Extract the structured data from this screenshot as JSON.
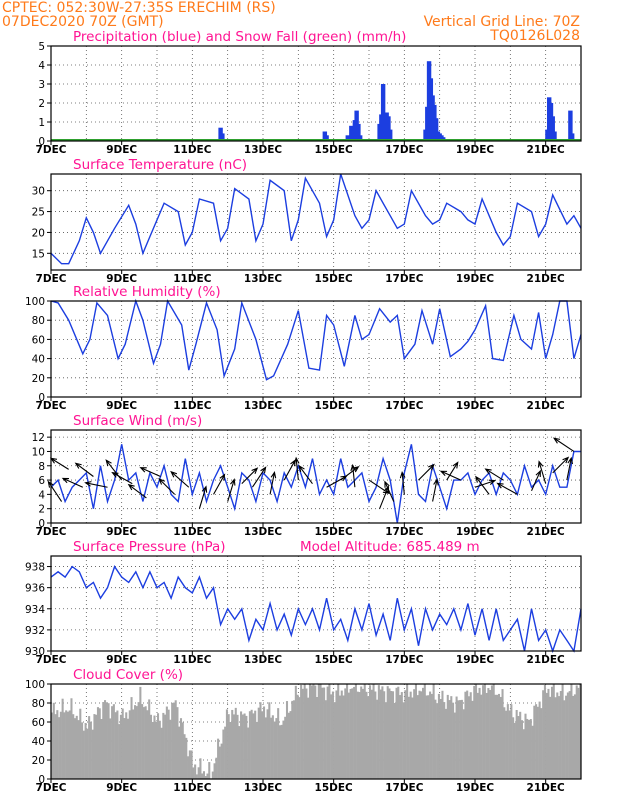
{
  "header": {
    "line1": "CPTEC:   052:30W-27:35S   ERECHIM (RS)",
    "line2": "07DEC2020 70Z (GMT)",
    "right1": "Vertical Grid Line: 70Z",
    "right2": "TQ0126L028"
  },
  "colors": {
    "header": "#ff7a1a",
    "title": "#ff1493",
    "line": "#1c3ee0",
    "precip": "#1c3ee0",
    "snow": "#2ea02e",
    "cloud": "#a8a8a8"
  },
  "chart_data": [
    {
      "id": "precip",
      "type": "bar",
      "title": "Precipitation (blue) and Snow Fall (green) (mm/h)",
      "ylim": [
        0,
        5
      ],
      "yticks": [
        0,
        1,
        2,
        3,
        4,
        5
      ],
      "xticks": [
        "7DEC",
        "9DEC",
        "11DEC",
        "13DEC",
        "15DEC",
        "17DEC",
        "19DEC",
        "21DEC"
      ],
      "series": [
        {
          "name": "Precipitation",
          "color": "#1c3ee0",
          "bars": [
            [
              4.8,
              0.7
            ],
            [
              4.85,
              0.4
            ],
            [
              7.75,
              0.5
            ],
            [
              7.8,
              0.3
            ],
            [
              8.4,
              0.3
            ],
            [
              8.5,
              0.8
            ],
            [
              8.55,
              0.5
            ],
            [
              8.6,
              1.1
            ],
            [
              8.65,
              1.6
            ],
            [
              8.7,
              0.9
            ],
            [
              8.75,
              0.3
            ],
            [
              9.3,
              0.9
            ],
            [
              9.35,
              1.4
            ],
            [
              9.4,
              3.0
            ],
            [
              9.45,
              1.2
            ],
            [
              9.5,
              1.5
            ],
            [
              9.55,
              1.3
            ],
            [
              9.6,
              0.6
            ],
            [
              10.6,
              0.6
            ],
            [
              10.65,
              1.8
            ],
            [
              10.7,
              4.2
            ],
            [
              10.75,
              3.3
            ],
            [
              10.8,
              2.4
            ],
            [
              10.85,
              1.9
            ],
            [
              10.9,
              1.2
            ],
            [
              10.95,
              0.5
            ],
            [
              11.0,
              0.4
            ],
            [
              11.05,
              0.3
            ],
            [
              11.1,
              0.2
            ],
            [
              14.05,
              0.6
            ],
            [
              14.1,
              2.3
            ],
            [
              14.15,
              2.0
            ],
            [
              14.2,
              1.3
            ],
            [
              14.25,
              0.5
            ],
            [
              14.7,
              1.6
            ],
            [
              14.75,
              0.4
            ]
          ]
        },
        {
          "name": "Snow Fall",
          "color": "#2ea02e",
          "value": 0
        }
      ]
    },
    {
      "id": "temp",
      "type": "line",
      "title": "Surface Temperature (nC)",
      "ylim": [
        11,
        34
      ],
      "yticks": [
        15,
        20,
        25,
        30
      ],
      "xticks": [
        "7DEC",
        "9DEC",
        "11DEC",
        "13DEC",
        "15DEC",
        "17DEC",
        "19DEC",
        "21DEC"
      ],
      "x": [
        0,
        0.3,
        0.5,
        0.8,
        1.0,
        1.2,
        1.4,
        1.8,
        2.2,
        2.4,
        2.6,
        2.8,
        3.2,
        3.6,
        3.8,
        4.0,
        4.2,
        4.6,
        4.8,
        5.0,
        5.2,
        5.6,
        5.8,
        6.0,
        6.2,
        6.6,
        6.8,
        7.0,
        7.2,
        7.6,
        7.8,
        8.0,
        8.2,
        8.6,
        8.8,
        9.0,
        9.2,
        9.6,
        9.8,
        10.0,
        10.2,
        10.6,
        10.8,
        11.0,
        11.2,
        11.6,
        11.8,
        12.0,
        12.2,
        12.6,
        12.8,
        13.0,
        13.2,
        13.6,
        13.8,
        14.0,
        14.2,
        14.6,
        14.8,
        15.0
      ],
      "values": [
        15,
        12.5,
        12.5,
        18,
        23.5,
        20,
        15,
        21,
        26.5,
        22,
        15,
        19,
        27,
        25,
        17,
        20,
        28,
        27,
        18,
        21,
        30.5,
        28,
        18,
        22,
        32.5,
        30,
        18,
        23,
        33,
        27,
        19,
        23,
        34,
        24,
        21,
        23,
        30,
        24,
        21,
        22,
        30,
        24,
        22,
        23,
        27,
        25,
        23,
        22,
        28,
        20,
        17,
        19,
        27,
        25,
        19,
        22,
        29,
        22,
        24,
        21
      ]
    },
    {
      "id": "rh",
      "type": "line",
      "title": "Relative Humidity (%)",
      "ylim": [
        0,
        100
      ],
      "yticks": [
        0,
        20,
        40,
        60,
        80,
        100
      ],
      "xticks": [
        "7DEC",
        "9DEC",
        "11DEC",
        "13DEC",
        "15DEC",
        "17DEC",
        "19DEC",
        "21DEC"
      ],
      "x": [
        0,
        0.2,
        0.5,
        0.9,
        1.1,
        1.3,
        1.6,
        1.9,
        2.1,
        2.4,
        2.6,
        2.9,
        3.1,
        3.3,
        3.7,
        3.9,
        4.1,
        4.4,
        4.7,
        4.9,
        5.2,
        5.4,
        5.8,
        6.1,
        6.3,
        6.7,
        7.0,
        7.3,
        7.6,
        7.8,
        8.0,
        8.3,
        8.6,
        8.8,
        9.0,
        9.3,
        9.6,
        9.8,
        10.0,
        10.3,
        10.5,
        10.8,
        11.0,
        11.3,
        11.6,
        11.8,
        12.0,
        12.3,
        12.5,
        12.8,
        13.1,
        13.3,
        13.6,
        13.8,
        14.0,
        14.2,
        14.4,
        14.6,
        14.8,
        15.0
      ],
      "values": [
        100,
        98,
        80,
        45,
        60,
        98,
        85,
        40,
        55,
        100,
        80,
        35,
        55,
        100,
        75,
        28,
        55,
        98,
        70,
        22,
        50,
        98,
        60,
        18,
        22,
        55,
        90,
        30,
        28,
        85,
        75,
        32,
        85,
        60,
        65,
        92,
        78,
        85,
        40,
        55,
        90,
        55,
        92,
        42,
        50,
        58,
        70,
        95,
        40,
        38,
        85,
        60,
        50,
        88,
        40,
        65,
        100,
        100,
        40,
        65
      ]
    },
    {
      "id": "wind",
      "type": "line",
      "title": "Surface Wind (m/s)",
      "ylim": [
        0,
        13
      ],
      "yticks": [
        0,
        2,
        4,
        6,
        8,
        10,
        12
      ],
      "xticks": [
        "7DEC",
        "9DEC",
        "11DEC",
        "13DEC",
        "15DEC",
        "17DEC",
        "19DEC",
        "21DEC"
      ],
      "x": [
        0,
        0.2,
        0.4,
        0.6,
        0.8,
        1.0,
        1.2,
        1.4,
        1.6,
        1.8,
        2.0,
        2.2,
        2.4,
        2.6,
        2.8,
        3.0,
        3.2,
        3.4,
        3.6,
        3.8,
        4.0,
        4.2,
        4.4,
        4.6,
        4.8,
        5.0,
        5.2,
        5.4,
        5.6,
        5.8,
        6.0,
        6.2,
        6.4,
        6.6,
        6.8,
        7.0,
        7.2,
        7.4,
        7.6,
        7.8,
        8.0,
        8.2,
        8.4,
        8.6,
        8.8,
        9.0,
        9.2,
        9.4,
        9.6,
        9.8,
        10.0,
        10.2,
        10.4,
        10.6,
        10.8,
        11.0,
        11.2,
        11.4,
        11.6,
        11.8,
        12.0,
        12.2,
        12.4,
        12.6,
        12.8,
        13.0,
        13.2,
        13.4,
        13.6,
        13.8,
        14.0,
        14.2,
        14.4,
        14.6,
        14.8,
        15.0
      ],
      "values": [
        5,
        6,
        3,
        5,
        6,
        7,
        2,
        8,
        3,
        6,
        11,
        6,
        7,
        3,
        7,
        5,
        8,
        4,
        3,
        9,
        4,
        7,
        3,
        6,
        8,
        5,
        2,
        7,
        6,
        3,
        7,
        6,
        3,
        7,
        5,
        8,
        5,
        9,
        4,
        6,
        4,
        9,
        5,
        6,
        7,
        3,
        5,
        9,
        6,
        0,
        7,
        11,
        4,
        3,
        8,
        5,
        2,
        6,
        6,
        7,
        4,
        6,
        7,
        4,
        7,
        6,
        4,
        8,
        5,
        6,
        4,
        8,
        5,
        5,
        10,
        10
      ],
      "arrows": [
        [
          0.3,
          3,
          -0.6,
          0.9
        ],
        [
          0.5,
          7.5,
          -0.8,
          0.5
        ],
        [
          0.9,
          5,
          -0.9,
          0.4
        ],
        [
          1.2,
          6.5,
          -0.8,
          0.6
        ],
        [
          1.6,
          5,
          -1,
          0.2
        ],
        [
          2.0,
          6,
          -0.7,
          0.9
        ],
        [
          2.3,
          5.5,
          -0.9,
          0.5
        ],
        [
          2.7,
          3.5,
          -0.8,
          0.6
        ],
        [
          3.1,
          6.5,
          -0.9,
          0.4
        ],
        [
          3.5,
          4,
          -0.7,
          0.7
        ],
        [
          3.9,
          5,
          -0.8,
          0.7
        ],
        [
          4.2,
          2,
          0.3,
          1
        ],
        [
          4.6,
          4,
          0.5,
          0.9
        ],
        [
          5.0,
          3,
          0.3,
          1
        ],
        [
          5.4,
          5.5,
          0.7,
          0.7
        ],
        [
          5.7,
          5,
          0.6,
          0.9
        ],
        [
          6.2,
          4,
          0.2,
          1
        ],
        [
          6.6,
          6,
          0.5,
          0.9
        ],
        [
          7.0,
          6,
          -0.1,
          1
        ],
        [
          7.4,
          5.5,
          -0.6,
          0.8
        ],
        [
          7.8,
          5,
          0.9,
          0.5
        ],
        [
          8.2,
          6,
          0.8,
          0.6
        ],
        [
          8.6,
          5,
          -0.1,
          1
        ],
        [
          9.0,
          6,
          0.9,
          -0.6
        ],
        [
          9.3,
          2,
          0.4,
          1
        ],
        [
          9.7,
          3,
          -0.4,
          0.9
        ],
        [
          10.0,
          4,
          -0.1,
          1
        ],
        [
          10.4,
          6,
          0.7,
          0.7
        ],
        [
          10.8,
          3,
          0.2,
          1
        ],
        [
          11.2,
          6,
          0.5,
          0.8
        ],
        [
          11.6,
          6,
          -0.9,
          0.4
        ],
        [
          12.0,
          5,
          0.9,
          0.3
        ],
        [
          12.4,
          4,
          -0.6,
          0.8
        ],
        [
          12.8,
          6,
          -0.8,
          0.5
        ],
        [
          13.2,
          4,
          -0.9,
          0.5
        ],
        [
          13.6,
          4.5,
          0.4,
          0.9
        ],
        [
          14.0,
          5.5,
          -0.3,
          1
        ],
        [
          14.2,
          7,
          0.7,
          0.7
        ],
        [
          14.6,
          6,
          0.2,
          1
        ],
        [
          14.8,
          10,
          -0.9,
          0.6
        ]
      ]
    },
    {
      "id": "pres",
      "type": "line",
      "title": "Surface Pressure (hPa)",
      "subtitle": "Model Altitude: 685.489  m",
      "ylim": [
        930,
        939
      ],
      "yticks": [
        930,
        932,
        934,
        936,
        938
      ],
      "xticks": [
        "7DEC",
        "9DEC",
        "11DEC",
        "13DEC",
        "15DEC",
        "17DEC",
        "19DEC",
        "21DEC"
      ],
      "x": [
        0,
        0.2,
        0.4,
        0.6,
        0.8,
        1.0,
        1.2,
        1.4,
        1.6,
        1.8,
        2.0,
        2.2,
        2.4,
        2.6,
        2.8,
        3.0,
        3.2,
        3.4,
        3.6,
        3.8,
        4.0,
        4.2,
        4.4,
        4.6,
        4.8,
        5.0,
        5.2,
        5.4,
        5.6,
        5.8,
        6.0,
        6.2,
        6.4,
        6.6,
        6.8,
        7.0,
        7.2,
        7.4,
        7.6,
        7.8,
        8.0,
        8.2,
        8.4,
        8.6,
        8.8,
        9.0,
        9.2,
        9.4,
        9.6,
        9.8,
        10.0,
        10.2,
        10.4,
        10.6,
        10.8,
        11.0,
        11.2,
        11.4,
        11.6,
        11.8,
        12.0,
        12.2,
        12.4,
        12.6,
        12.8,
        13.0,
        13.2,
        13.4,
        13.6,
        13.8,
        14.0,
        14.2,
        14.4,
        14.6,
        14.8,
        15.0
      ],
      "values": [
        937,
        937.5,
        937,
        938,
        937.5,
        936,
        936.5,
        935,
        936,
        938,
        937,
        936.5,
        937.5,
        936,
        937.5,
        936,
        936.5,
        935,
        937,
        936,
        935.5,
        937,
        935,
        936,
        932.5,
        934,
        933,
        934,
        931,
        933,
        932,
        934.5,
        932,
        933.5,
        931.5,
        934,
        932.5,
        934,
        932,
        935,
        932,
        933,
        931,
        934,
        932,
        934.5,
        931.5,
        933.5,
        931,
        935,
        932,
        934,
        930.5,
        934,
        932,
        933.5,
        932.5,
        934,
        932,
        934.5,
        931.5,
        934,
        931,
        934,
        931,
        932,
        933,
        930,
        934,
        931,
        932,
        930,
        932,
        931,
        930,
        934
      ]
    },
    {
      "id": "cloud",
      "type": "bar",
      "title": "Cloud Cover (%)",
      "ylim": [
        0,
        100
      ],
      "yticks": [
        0,
        20,
        40,
        60,
        80,
        100
      ],
      "xticks": [
        "7DEC",
        "9DEC",
        "11DEC",
        "13DEC",
        "15DEC",
        "17DEC",
        "19DEC",
        "21DEC"
      ],
      "x": [
        0,
        0.5,
        1.0,
        1.5,
        2.0,
        2.5,
        3.0,
        3.5,
        4.0,
        4.5,
        5.0,
        5.5,
        6.0,
        6.5,
        7.0,
        7.5,
        8.0,
        8.5,
        9.0,
        9.5,
        10.0,
        10.5,
        11.0,
        11.5,
        12.0,
        12.5,
        13.0,
        13.5,
        14.0,
        14.5,
        15.0
      ],
      "values": [
        70,
        75,
        55,
        80,
        65,
        85,
        60,
        80,
        15,
        5,
        70,
        65,
        75,
        60,
        95,
        98,
        90,
        98,
        95,
        92,
        90,
        96,
        85,
        80,
        95,
        98,
        70,
        60,
        95,
        90,
        98
      ]
    }
  ]
}
